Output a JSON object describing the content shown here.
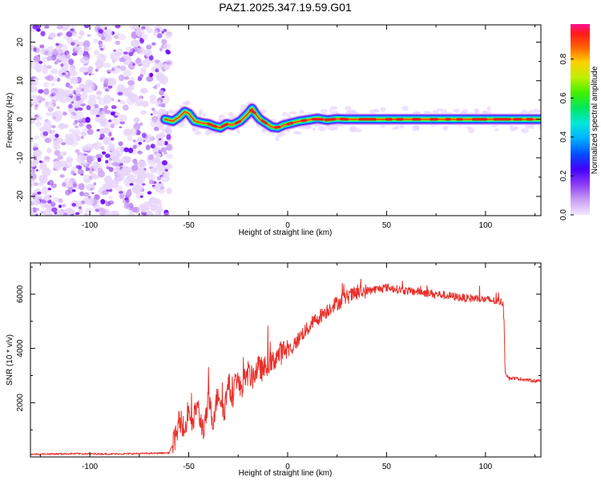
{
  "figure": {
    "title": "PAZ1.2025.347.19.59.G01"
  },
  "colors": {
    "snr_line": "#e8302a",
    "colormap": [
      "#e8d6fb",
      "#c89cf5",
      "#9a4ef2",
      "#6a00ff",
      "#2a20ff",
      "#0088ff",
      "#00e0e0",
      "#00e060",
      "#50f000",
      "#d0f000",
      "#ffd000",
      "#ff6000",
      "#e82020",
      "#ff1090"
    ]
  },
  "chart_data": [
    {
      "type": "heatmap",
      "title": "PAZ1.2025.347.19.59.G01",
      "xlabel": "Height of straight line (km)",
      "ylabel": "Frequency (Hz)",
      "xlim": [
        -130,
        128
      ],
      "ylim": [
        -25,
        24.5
      ],
      "xticks": [
        -100,
        -50,
        0,
        50,
        100
      ],
      "yticks": [
        -20,
        -10,
        0,
        10,
        20
      ],
      "noise_region_x": [
        -130,
        -62
      ],
      "ridge": {
        "description_points_x": [
          -62,
          -58,
          -55,
          -52,
          -50,
          -47,
          -43,
          -40,
          -37,
          -34,
          -31,
          -28,
          -24,
          -20,
          -18,
          -16,
          -14,
          -11,
          -8,
          -5,
          -2,
          2,
          6,
          10,
          15,
          20,
          25,
          30,
          40,
          50,
          60,
          70,
          80,
          90,
          100,
          110,
          120,
          128
        ],
        "frequency_hz": [
          0,
          -0.5,
          0.5,
          2.0,
          1.5,
          -0.5,
          -1.0,
          -1.2,
          -1.8,
          -2.2,
          -1.2,
          -1.5,
          -0.5,
          1.5,
          2.8,
          1.2,
          0,
          -1.0,
          -2.0,
          -2.2,
          -1.5,
          -1.0,
          -0.5,
          -0.2,
          0.2,
          -0.2,
          0.1,
          0,
          0,
          0,
          0,
          0,
          0,
          0,
          0,
          0,
          0,
          0
        ]
      },
      "colorbar": {
        "label": "Normalized spectral amplitude",
        "range": [
          0.0,
          0.98
        ],
        "ticks": [
          "0.0",
          "0.2",
          "0.4",
          "0.6",
          "0.8"
        ]
      }
    },
    {
      "type": "line",
      "xlabel": "Height of straight line (km)",
      "ylabel": "SNR (10 * v/v)",
      "xlim": [
        -130,
        128
      ],
      "ylim": [
        0,
        7150
      ],
      "xticks": [
        -100,
        -50,
        0,
        50,
        100
      ],
      "yticks": [
        2000,
        4000,
        6000
      ],
      "series": [
        {
          "name": "SNR",
          "x": [
            -130,
            -110,
            -90,
            -70,
            -60,
            -57,
            -54,
            -52,
            -50,
            -48,
            -46,
            -44,
            -42,
            -40,
            -38,
            -35,
            -32,
            -30,
            -28,
            -26,
            -24,
            -22,
            -20,
            -18,
            -15,
            -12,
            -10,
            -8,
            -6,
            -4,
            -2,
            0,
            2,
            5,
            8,
            10,
            12,
            15,
            18,
            20,
            23,
            26,
            30,
            34,
            38,
            42,
            46,
            50,
            54,
            58,
            62,
            66,
            70,
            75,
            80,
            85,
            90,
            95,
            100,
            105,
            109,
            110,
            112,
            115,
            120,
            125,
            128
          ],
          "values": [
            100,
            120,
            110,
            130,
            150,
            600,
            1400,
            900,
            1800,
            1100,
            2000,
            1300,
            1000,
            2200,
            1300,
            2400,
            1700,
            2800,
            2100,
            3000,
            2500,
            2800,
            3100,
            2900,
            3300,
            3200,
            3500,
            3400,
            3700,
            3800,
            3900,
            4000,
            4000,
            4300,
            4600,
            4700,
            4900,
            5100,
            5300,
            5400,
            5600,
            5700,
            5900,
            6000,
            6100,
            6150,
            6200,
            6250,
            6200,
            6150,
            6100,
            6100,
            6050,
            6000,
            5950,
            5900,
            5850,
            5850,
            5800,
            5750,
            5700,
            3100,
            2900,
            2900,
            2850,
            2800,
            2800
          ]
        }
      ]
    }
  ]
}
